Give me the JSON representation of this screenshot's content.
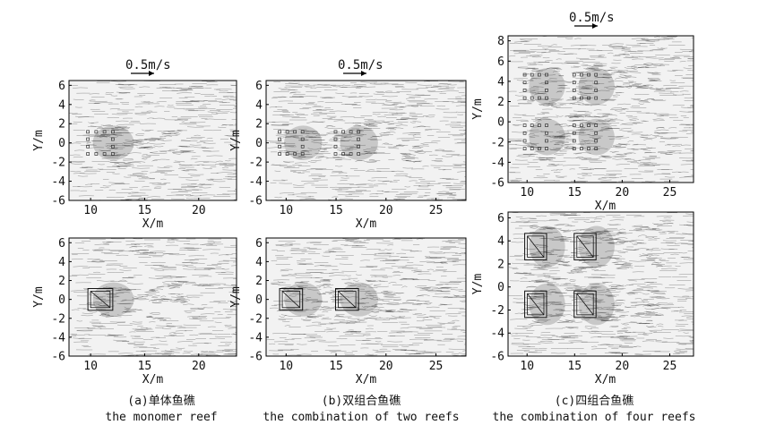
{
  "figure": {
    "columns": [
      {
        "caption_zh": "(a)单体鱼礁",
        "caption_en": "the monomer reef"
      },
      {
        "caption_zh": "(b)双组合鱼礁",
        "caption_en": "the combination of two reefs"
      },
      {
        "caption_zh": "(c)四组合鱼礁",
        "caption_en": "the combination of four reefs"
      }
    ]
  },
  "chart_data": [
    {
      "id": "a-top",
      "type": "other",
      "kind": "particle-streak flow field",
      "xlabel": "X/m",
      "ylabel": "Y/m",
      "xlim": [
        8,
        23.5
      ],
      "ylim": [
        -6,
        6.5
      ],
      "xticks": [
        10,
        15,
        20
      ],
      "yticks": [
        -6,
        -4,
        -2,
        0,
        2,
        4,
        6
      ],
      "scale_label": "0.5m/s",
      "reefs": [
        {
          "x": 10.9,
          "y": 0,
          "size": 2.3
        }
      ],
      "show_reef_boxes": false
    },
    {
      "id": "b-top",
      "type": "other",
      "kind": "particle-streak flow field",
      "xlabel": "X/m",
      "ylabel": "Y/m",
      "xlim": [
        8,
        28
      ],
      "ylim": [
        -6,
        6.5
      ],
      "xticks": [
        10,
        15,
        20,
        25
      ],
      "yticks": [
        -6,
        -4,
        -2,
        0,
        2,
        4,
        6
      ],
      "scale_label": "0.5m/s",
      "reefs": [
        {
          "x": 10.5,
          "y": 0,
          "size": 2.3
        },
        {
          "x": 16.1,
          "y": 0,
          "size": 2.3
        }
      ],
      "show_reef_boxes": false
    },
    {
      "id": "c-top",
      "type": "other",
      "kind": "particle-streak flow field",
      "xlabel": "X/m",
      "ylabel": "Y/m",
      "xlim": [
        8,
        27.5
      ],
      "ylim": [
        -6,
        8.5
      ],
      "xticks": [
        10,
        15,
        20,
        25
      ],
      "yticks": [
        -6,
        -4,
        -2,
        0,
        2,
        4,
        6,
        8
      ],
      "scale_label": "0.5m/s",
      "reefs": [
        {
          "x": 10.9,
          "y": 3.5,
          "size": 2.3
        },
        {
          "x": 16.1,
          "y": 3.5,
          "size": 2.3
        },
        {
          "x": 10.9,
          "y": -1.5,
          "size": 2.3
        },
        {
          "x": 16.1,
          "y": -1.5,
          "size": 2.3
        }
      ],
      "show_reef_boxes": false
    },
    {
      "id": "a-bottom",
      "type": "other",
      "kind": "particle-streak flow field",
      "xlabel": "X/m",
      "ylabel": "Y/m",
      "xlim": [
        8,
        23.5
      ],
      "ylim": [
        -6,
        6.5
      ],
      "xticks": [
        10,
        15,
        20
      ],
      "yticks": [
        -6,
        -4,
        -2,
        0,
        2,
        4,
        6
      ],
      "reefs": [
        {
          "x": 10.9,
          "y": 0,
          "size": 2.3
        }
      ],
      "show_reef_boxes": true
    },
    {
      "id": "b-bottom",
      "type": "other",
      "kind": "particle-streak flow field",
      "xlabel": "X/m",
      "ylabel": "Y/m",
      "xlim": [
        8,
        28
      ],
      "ylim": [
        -6,
        6.5
      ],
      "xticks": [
        10,
        15,
        20,
        25
      ],
      "yticks": [
        -6,
        -4,
        -2,
        0,
        2,
        4,
        6
      ],
      "reefs": [
        {
          "x": 10.5,
          "y": 0,
          "size": 2.3
        },
        {
          "x": 16.1,
          "y": 0,
          "size": 2.3
        }
      ],
      "show_reef_boxes": true
    },
    {
      "id": "c-bottom",
      "type": "other",
      "kind": "particle-streak flow field",
      "xlabel": "X/m",
      "ylabel": "Y/m",
      "xlim": [
        8,
        27.5
      ],
      "ylim": [
        -6,
        6.5
      ],
      "xticks": [
        10,
        15,
        20,
        25
      ],
      "yticks": [
        -6,
        -4,
        -2,
        0,
        2,
        4,
        6
      ],
      "reefs": [
        {
          "x": 10.9,
          "y": 3.5,
          "size": 2.3
        },
        {
          "x": 16.1,
          "y": 3.5,
          "size": 2.3
        },
        {
          "x": 10.9,
          "y": -1.5,
          "size": 2.3
        },
        {
          "x": 16.1,
          "y": -1.5,
          "size": 2.3
        }
      ],
      "show_reef_boxes": true
    }
  ]
}
